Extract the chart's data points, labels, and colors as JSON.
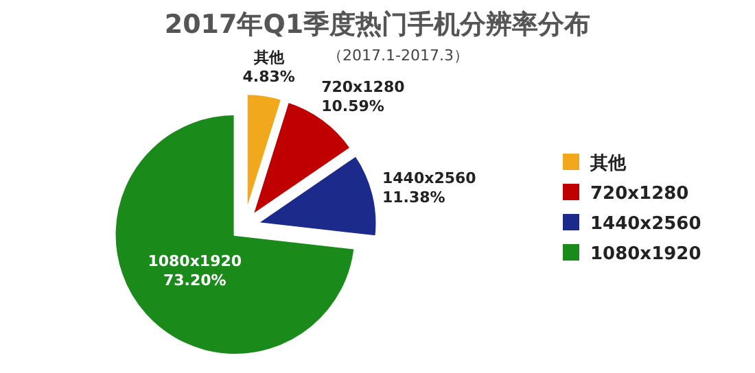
{
  "chart_data": {
    "type": "pie",
    "title": "2017年Q1季度热门手机分辨率分布",
    "subtitle": "（2017.1-2017.3）",
    "categories": [
      "其他",
      "720x1280",
      "1440x2560",
      "1080x1920"
    ],
    "values": [
      4.83,
      10.59,
      11.38,
      73.2
    ],
    "colors": [
      "#f2a81d",
      "#c00000",
      "#1c2a8c",
      "#1a8a1a"
    ],
    "value_labels": [
      "4.83%",
      "10.59%",
      "11.38%",
      "73.20%"
    ],
    "legend": "right"
  }
}
